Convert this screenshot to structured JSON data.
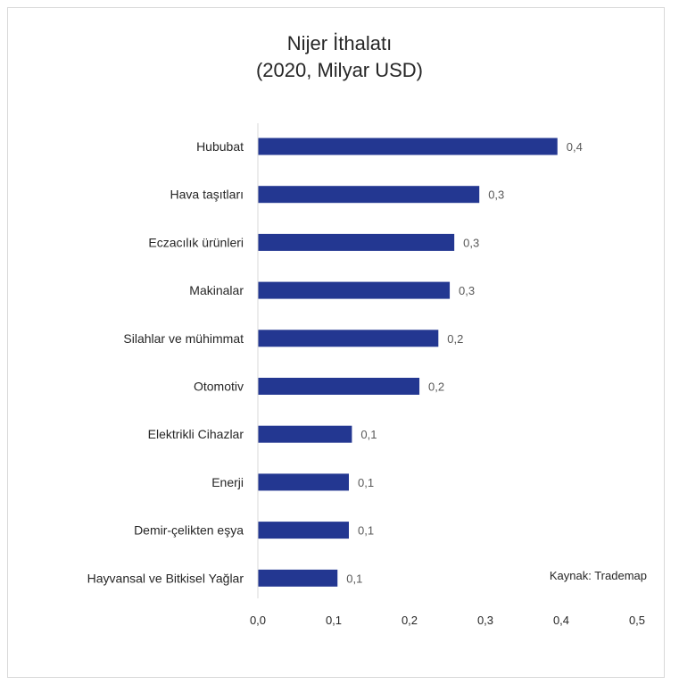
{
  "chart_data": {
    "type": "bar",
    "orientation": "horizontal",
    "title": [
      "Nijer İthalatı",
      "(2020, Milyar USD)"
    ],
    "categories": [
      "Hububat",
      "Hava taşıtları",
      "Eczacılık ürünleri",
      "Makinalar",
      "Silahlar ve mühimmat",
      "Otomotiv",
      "Elektrikli Cihazlar",
      "Enerji",
      "Demir-çelikten eşya",
      "Hayvansal ve Bitkisel Yağlar"
    ],
    "values": [
      0.395,
      0.292,
      0.259,
      0.253,
      0.238,
      0.213,
      0.124,
      0.12,
      0.12,
      0.105
    ],
    "data_labels": [
      "0,4",
      "0,3",
      "0,3",
      "0,3",
      "0,2",
      "0,2",
      "0,1",
      "0,1",
      "0,1",
      "0,1"
    ],
    "x_ticks": [
      "0,0",
      "0,1",
      "0,2",
      "0,3",
      "0,4",
      "0,5"
    ],
    "xlim": [
      0,
      0.5
    ],
    "grid": false,
    "legend": "none",
    "bar_color": "#233791",
    "annotation": "Kaynak: Trademap"
  }
}
